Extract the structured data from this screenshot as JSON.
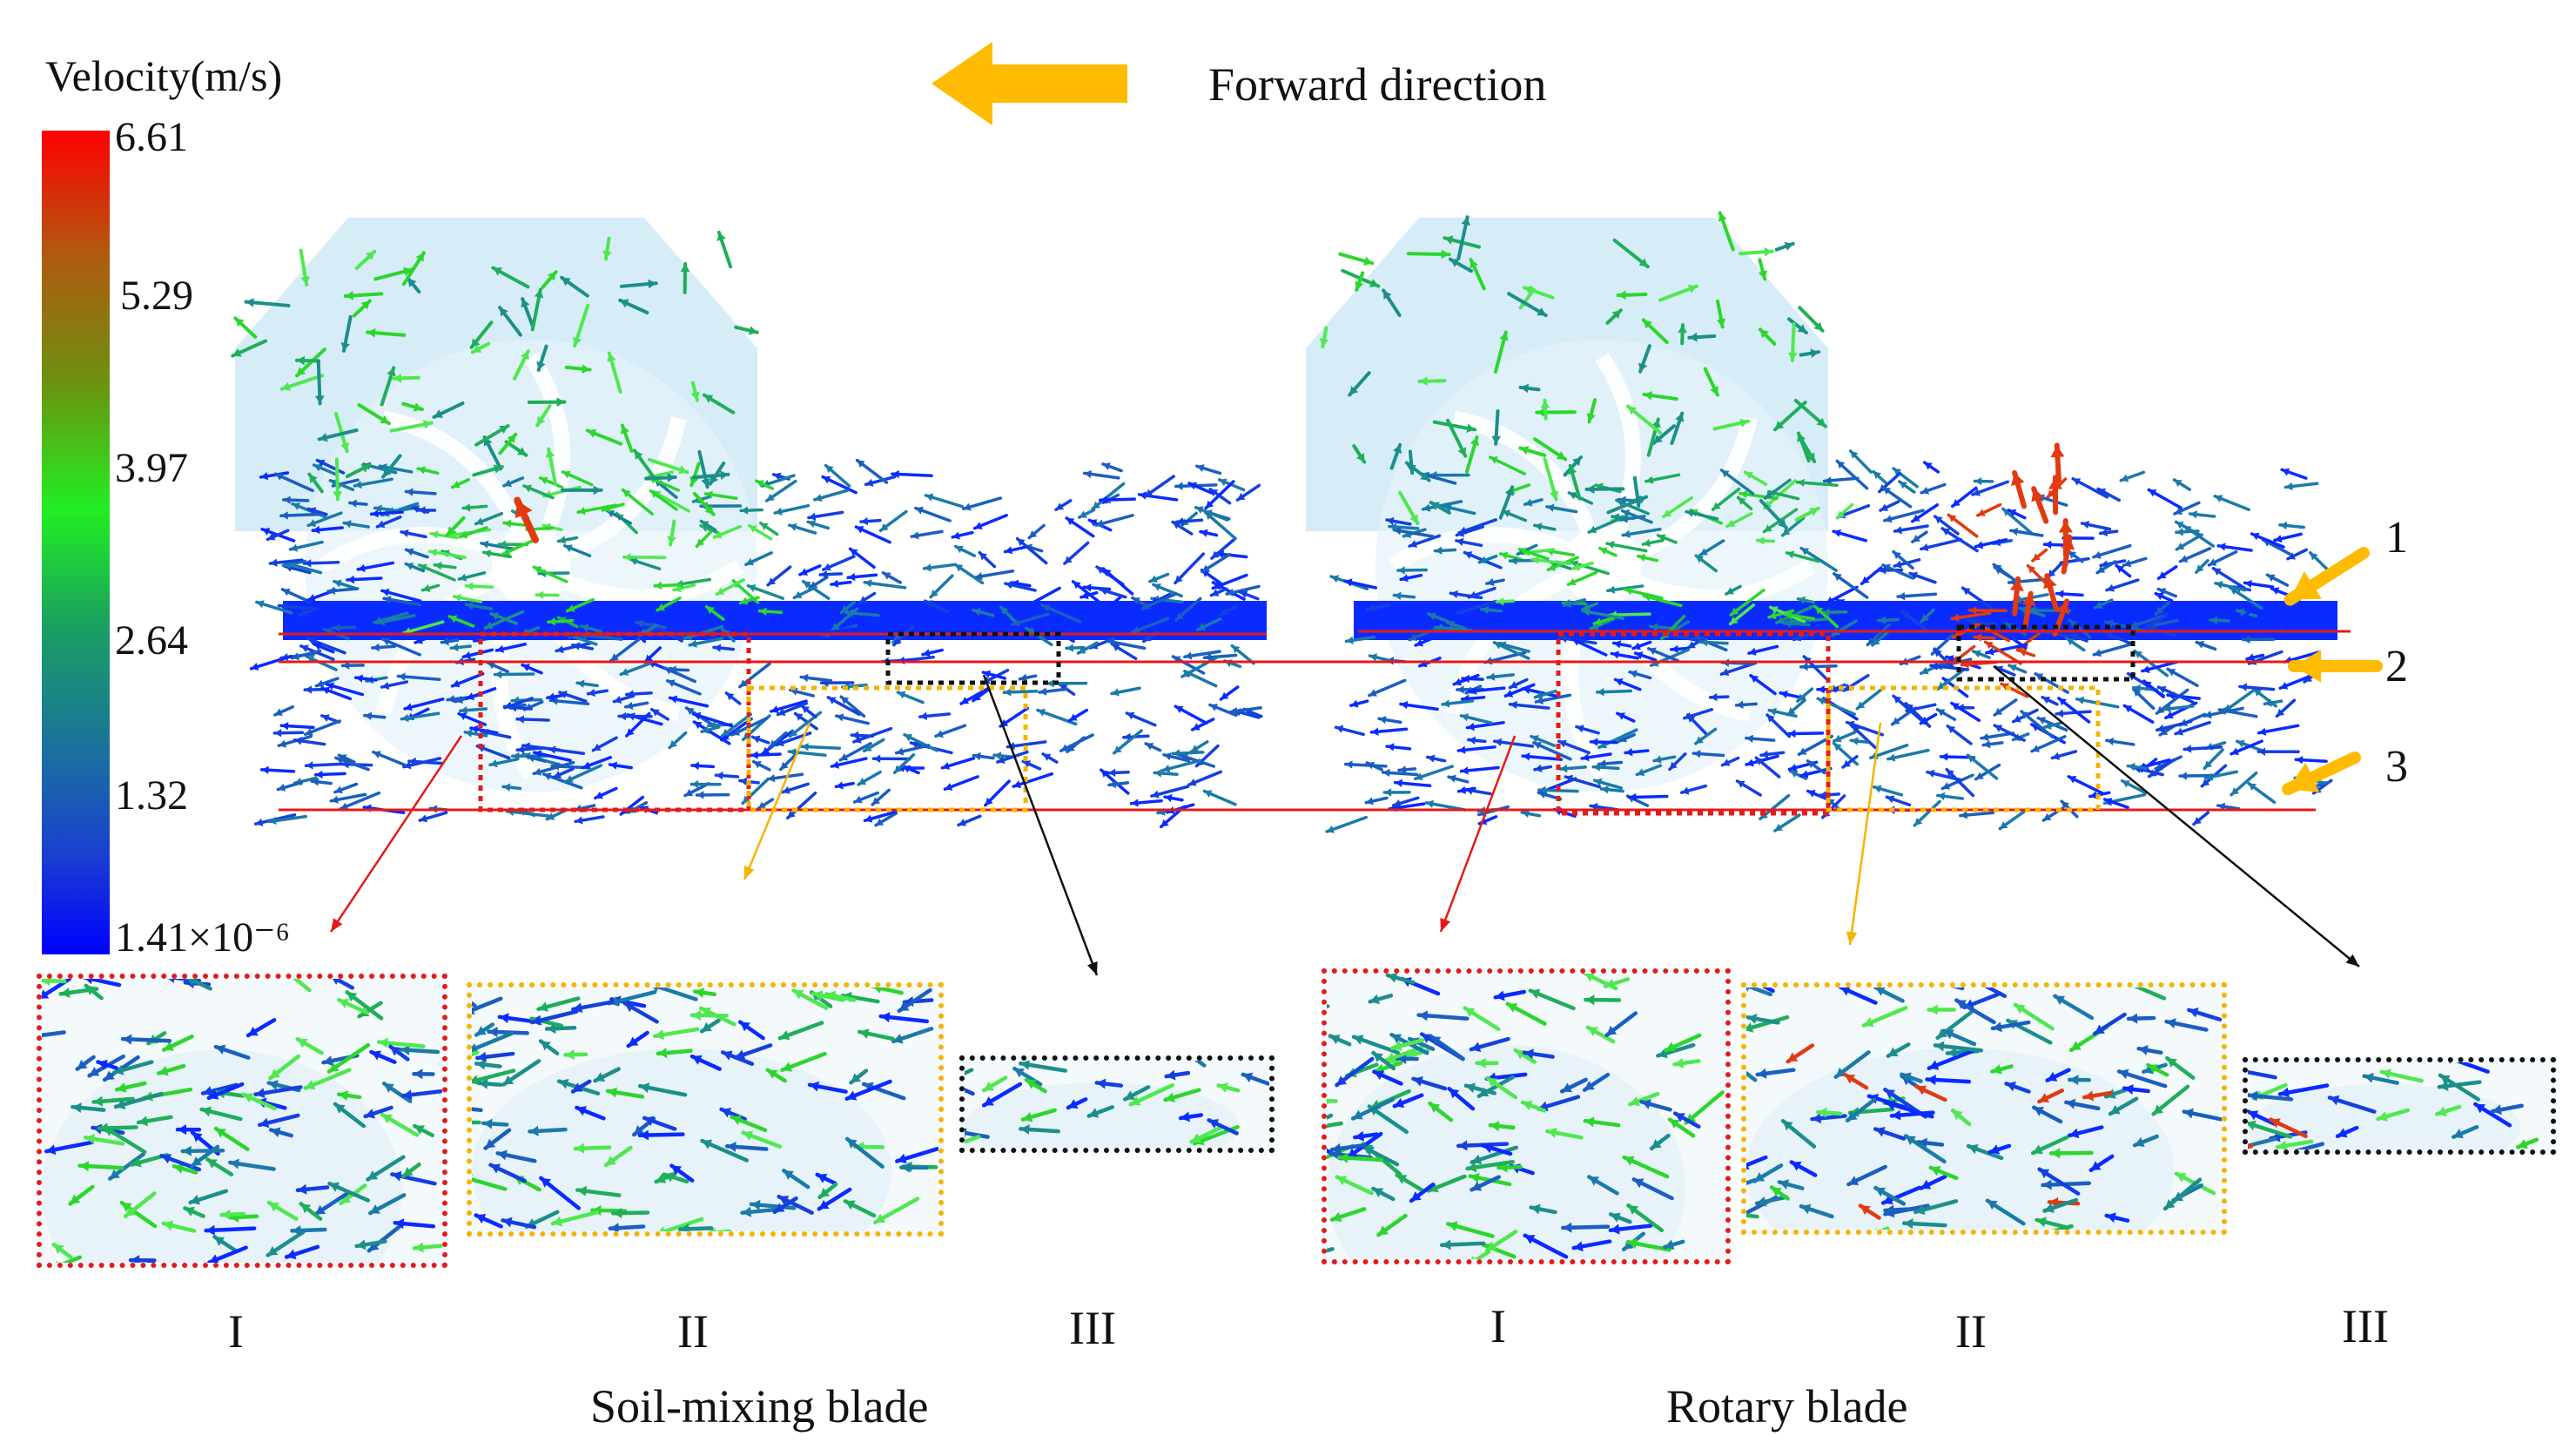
{
  "legend": {
    "title": "Velocity(m/s)",
    "ticks": [
      "6.61",
      "5.29",
      "3.97",
      "2.64",
      "1.32",
      "1.41×10⁻⁶"
    ]
  },
  "header": {
    "forward_label": "Forward direction",
    "forward_arrow_icon": "left-arrow-icon"
  },
  "layers": [
    "1",
    "2",
    "3"
  ],
  "panels": [
    {
      "caption": "Soil-mixing blade",
      "insets": [
        "I",
        "II",
        "III"
      ]
    },
    {
      "caption": "Rotary blade",
      "insets": [
        "I",
        "II",
        "III"
      ]
    }
  ],
  "colors": {
    "red_box": "#e51a1a",
    "orange_box": "#f5b400",
    "black_box": "#111111",
    "layer_line": "#e51a1a",
    "arrow_accent": "#ffbb00",
    "chassis": "#cfe9f6"
  }
}
